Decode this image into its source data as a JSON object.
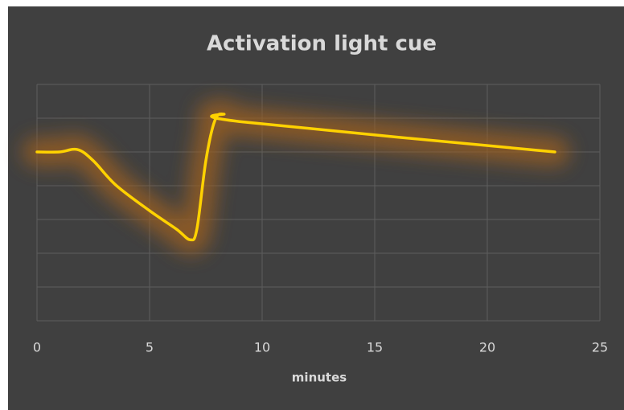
{
  "chart_data": {
    "type": "line",
    "title": "Activation light cue",
    "xlabel": "minutes",
    "x": [
      0,
      1,
      1.8,
      2.5,
      3.5,
      5,
      6.2,
      6.8,
      7.1,
      7.5,
      7.9,
      8.3,
      9,
      23
    ],
    "values": [
      5,
      5,
      5.07,
      4.74,
      4.02,
      3.26,
      2.71,
      2.4,
      2.71,
      4.74,
      5.93,
      6.12,
      5.9,
      5
    ],
    "color": "#ffd200",
    "glow_color": "#9a5e22",
    "xlim": [
      0,
      25
    ],
    "xticks": [
      0,
      5,
      10,
      15,
      20,
      25
    ],
    "ylim": [
      0,
      7
    ],
    "yticks": [
      0,
      1,
      2,
      3,
      4,
      5,
      6,
      7
    ],
    "grid": true
  }
}
